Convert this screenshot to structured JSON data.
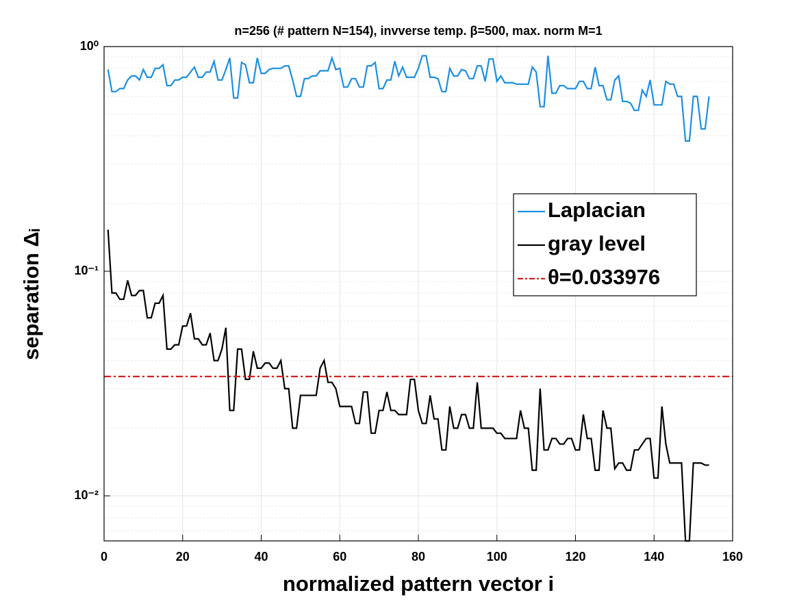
{
  "chart_data": {
    "type": "line",
    "title": "n=256 (# pattern N=154), invverse temp. β=500, max. norm M=1",
    "xlabel": "normalized pattern vector i",
    "ylabel": "separation Δᵢ",
    "log_y": true,
    "grid": true,
    "minor_grid": true,
    "legend": "right",
    "xlim": [
      0,
      160
    ],
    "xticks": [
      0,
      20,
      40,
      60,
      80,
      100,
      120,
      140,
      160
    ],
    "ylim": [
      0.0063,
      1
    ],
    "yticks": [
      {
        "value": 0.01,
        "label": "10⁻²"
      },
      {
        "value": 0.1,
        "label": "10⁻¹"
      },
      {
        "value": 1,
        "label": "10⁰"
      }
    ],
    "x": [
      1,
      2,
      3,
      4,
      5,
      6,
      7,
      8,
      9,
      10,
      11,
      12,
      13,
      14,
      15,
      16,
      17,
      18,
      19,
      20,
      21,
      22,
      23,
      24,
      25,
      26,
      27,
      28,
      29,
      30,
      31,
      32,
      33,
      34,
      35,
      36,
      37,
      38,
      39,
      40,
      41,
      42,
      43,
      44,
      45,
      46,
      47,
      48,
      49,
      50,
      51,
      52,
      53,
      54,
      55,
      56,
      57,
      58,
      59,
      60,
      61,
      62,
      63,
      64,
      65,
      66,
      67,
      68,
      69,
      70,
      71,
      72,
      73,
      74,
      75,
      76,
      77,
      78,
      79,
      80,
      81,
      82,
      83,
      84,
      85,
      86,
      87,
      88,
      89,
      90,
      91,
      92,
      93,
      94,
      95,
      96,
      97,
      98,
      99,
      100,
      101,
      102,
      103,
      104,
      105,
      106,
      107,
      108,
      109,
      110,
      111,
      112,
      113,
      114,
      115,
      116,
      117,
      118,
      119,
      120,
      121,
      122,
      123,
      124,
      125,
      126,
      127,
      128,
      129,
      130,
      131,
      132,
      133,
      134,
      135,
      136,
      137,
      138,
      139,
      140,
      141,
      142,
      143,
      144,
      145,
      146,
      147,
      148,
      149,
      150,
      151,
      152,
      153,
      154
    ],
    "series": [
      {
        "name": "Laplacian",
        "color": "#1a8fe3",
        "values": [
          0.79,
          0.63,
          0.63,
          0.65,
          0.65,
          0.71,
          0.74,
          0.74,
          0.71,
          0.79,
          0.73,
          0.73,
          0.8,
          0.8,
          0.83,
          0.67,
          0.67,
          0.71,
          0.71,
          0.73,
          0.73,
          0.77,
          0.81,
          0.73,
          0.73,
          0.77,
          0.77,
          0.86,
          0.71,
          0.71,
          0.79,
          0.89,
          0.59,
          0.59,
          0.85,
          0.83,
          0.69,
          0.69,
          0.89,
          0.76,
          0.76,
          0.79,
          0.8,
          0.8,
          0.8,
          0.82,
          0.82,
          0.71,
          0.6,
          0.6,
          0.72,
          0.72,
          0.74,
          0.74,
          0.78,
          0.78,
          0.78,
          0.89,
          0.79,
          0.8,
          0.66,
          0.66,
          0.72,
          0.72,
          0.66,
          0.66,
          0.82,
          0.82,
          0.85,
          0.65,
          0.65,
          0.71,
          0.71,
          0.86,
          0.74,
          0.81,
          0.73,
          0.73,
          0.73,
          0.8,
          0.91,
          0.91,
          0.73,
          0.73,
          0.72,
          0.63,
          0.63,
          0.8,
          0.74,
          0.74,
          0.79,
          0.78,
          0.72,
          0.72,
          0.82,
          0.82,
          0.7,
          0.88,
          0.88,
          0.7,
          0.74,
          0.69,
          0.69,
          0.69,
          0.68,
          0.68,
          0.68,
          0.68,
          0.81,
          0.77,
          0.54,
          0.54,
          0.91,
          0.62,
          0.62,
          0.67,
          0.67,
          0.65,
          0.65,
          0.65,
          0.7,
          0.7,
          0.65,
          0.65,
          0.81,
          0.67,
          0.67,
          0.58,
          0.58,
          0.71,
          0.74,
          0.57,
          0.57,
          0.56,
          0.52,
          0.52,
          0.64,
          0.6,
          0.71,
          0.55,
          0.55,
          0.55,
          0.7,
          0.68,
          0.68,
          0.6,
          0.6,
          0.38,
          0.38,
          0.6,
          0.6,
          0.43,
          0.43,
          0.6
        ]
      },
      {
        "name": "gray level",
        "color": "#000000",
        "values": [
          0.153,
          0.08,
          0.08,
          0.075,
          0.075,
          0.091,
          0.078,
          0.078,
          0.082,
          0.082,
          0.062,
          0.062,
          0.072,
          0.072,
          0.078,
          0.045,
          0.045,
          0.047,
          0.047,
          0.057,
          0.057,
          0.065,
          0.05,
          0.05,
          0.047,
          0.047,
          0.053,
          0.04,
          0.04,
          0.045,
          0.056,
          0.024,
          0.024,
          0.045,
          0.045,
          0.033,
          0.033,
          0.044,
          0.037,
          0.037,
          0.039,
          0.039,
          0.037,
          0.037,
          0.04,
          0.03,
          0.03,
          0.02,
          0.02,
          0.028,
          0.028,
          0.028,
          0.028,
          0.028,
          0.037,
          0.04,
          0.032,
          0.032,
          0.03,
          0.025,
          0.025,
          0.025,
          0.025,
          0.021,
          0.021,
          0.029,
          0.029,
          0.019,
          0.019,
          0.024,
          0.024,
          0.029,
          0.024,
          0.024,
          0.023,
          0.023,
          0.023,
          0.033,
          0.033,
          0.024,
          0.021,
          0.021,
          0.028,
          0.022,
          0.022,
          0.016,
          0.016,
          0.025,
          0.02,
          0.02,
          0.023,
          0.023,
          0.02,
          0.02,
          0.032,
          0.02,
          0.02,
          0.02,
          0.02,
          0.019,
          0.019,
          0.018,
          0.018,
          0.018,
          0.018,
          0.024,
          0.02,
          0.02,
          0.013,
          0.013,
          0.03,
          0.016,
          0.016,
          0.018,
          0.018,
          0.017,
          0.017,
          0.018,
          0.018,
          0.016,
          0.016,
          0.023,
          0.018,
          0.018,
          0.013,
          0.013,
          0.024,
          0.02,
          0.02,
          0.0132,
          0.014,
          0.014,
          0.013,
          0.013,
          0.016,
          0.016,
          0.017,
          0.018,
          0.018,
          0.012,
          0.012,
          0.025,
          0.017,
          0.014,
          0.014,
          0.014,
          0.014,
          0.0063,
          0.0063,
          0.014,
          0.014,
          0.014,
          0.0137,
          0.0137
        ]
      }
    ],
    "hlines": [
      {
        "name": "θ=0.033976",
        "value": 0.033976,
        "color": "#d62020"
      }
    ]
  }
}
